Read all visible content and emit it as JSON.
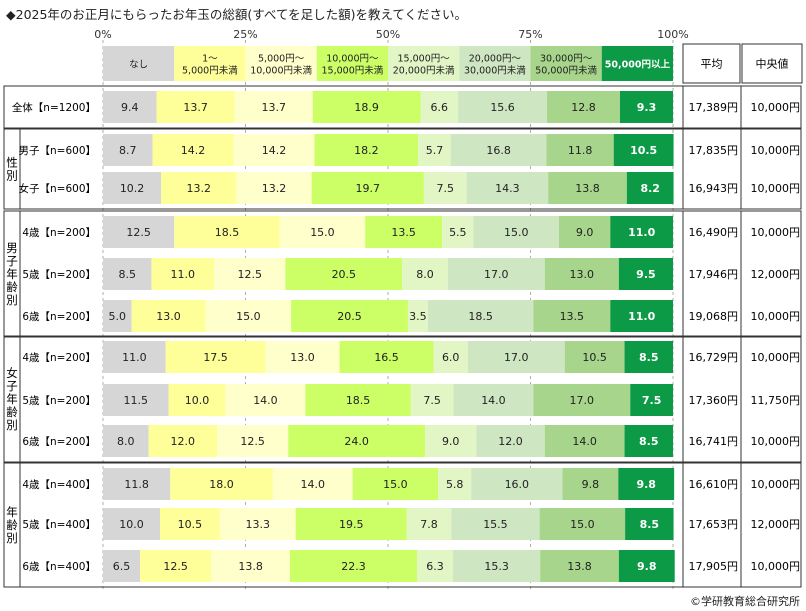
{
  "title": "◆2025年のお正月にもらったお年玉の総額(すべてを足した額)を教えてください。",
  "copyright": "©学研教育総合研究所",
  "chart_data": {
    "type": "bar",
    "orientation": "horizontal",
    "stacked": true,
    "percent_scale": true,
    "xlim": [
      0,
      100
    ],
    "xticks": [
      "0%",
      "25%",
      "50%",
      "75%",
      "100%"
    ],
    "colors": [
      "#d6d6d6",
      "#ffff99",
      "#ffffcc",
      "#ccff66",
      "#e2f5c4",
      "#cfe6c2",
      "#a8d58c",
      "#0d9a46"
    ],
    "series": [
      {
        "name": "なし",
        "values": [
          9.4,
          8.7,
          10.2,
          12.5,
          8.5,
          5.0,
          11.0,
          11.5,
          8.0,
          11.8,
          10.0,
          6.5
        ]
      },
      {
        "name": "1～\n5,000円未満",
        "values": [
          13.7,
          14.2,
          13.2,
          18.5,
          11.0,
          13.0,
          17.5,
          10.0,
          12.0,
          18.0,
          10.5,
          12.5
        ]
      },
      {
        "name": "5,000円～\n10,000円未満",
        "values": [
          13.7,
          14.2,
          13.2,
          15.0,
          12.5,
          15.0,
          13.0,
          14.0,
          12.5,
          14.0,
          13.3,
          13.8
        ]
      },
      {
        "name": "10,000円～\n15,000円未満",
        "values": [
          18.9,
          18.2,
          19.7,
          13.5,
          20.5,
          20.5,
          16.5,
          18.5,
          24.0,
          15.0,
          19.5,
          22.3
        ]
      },
      {
        "name": "15,000円～\n20,000円未満",
        "values": [
          6.6,
          5.7,
          7.5,
          5.5,
          8.0,
          3.5,
          6.0,
          7.5,
          9.0,
          5.8,
          7.8,
          6.3
        ]
      },
      {
        "name": "20,000円～\n30,000円未満",
        "values": [
          15.6,
          16.8,
          14.3,
          15.0,
          17.0,
          18.5,
          17.0,
          14.0,
          12.0,
          16.0,
          15.5,
          15.3
        ]
      },
      {
        "name": "30,000円～\n50,000円未満",
        "values": [
          12.8,
          11.8,
          13.8,
          9.0,
          13.0,
          13.5,
          10.5,
          17.0,
          14.0,
          9.8,
          15.0,
          13.8
        ]
      },
      {
        "name": "50,000円以上",
        "values": [
          9.3,
          10.5,
          8.2,
          11.0,
          9.5,
          11.0,
          8.5,
          7.5,
          8.5,
          9.8,
          8.5,
          9.8
        ]
      }
    ],
    "categories": [
      "全体【n=1200】",
      "男子【n=600】",
      "女子【n=600】",
      "4歳【n=200】",
      "5歳【n=200】",
      "6歳【n=200】",
      "4歳【n=200】",
      "5歳【n=200】",
      "6歳【n=200】",
      "4歳【n=400】",
      "5歳【n=400】",
      "6歳【n=400】"
    ],
    "groups": [
      {
        "label": "",
        "rows": [
          0
        ]
      },
      {
        "label": "性別",
        "rows": [
          1,
          2
        ]
      },
      {
        "label": "男子年齢別",
        "rows": [
          3,
          4,
          5
        ]
      },
      {
        "label": "女子年齢別",
        "rows": [
          6,
          7,
          8
        ]
      },
      {
        "label": "年齢別",
        "rows": [
          9,
          10,
          11
        ]
      }
    ],
    "table_headers": [
      "平均",
      "中央値"
    ],
    "mean": [
      "17,389円",
      "17,835円",
      "16,943円",
      "16,490円",
      "17,946円",
      "19,068円",
      "16,729円",
      "17,360円",
      "16,741円",
      "16,610円",
      "17,653円",
      "17,905円"
    ],
    "median": [
      "10,000円",
      "10,000円",
      "10,000円",
      "10,000円",
      "12,000円",
      "10,000円",
      "10,000円",
      "11,750円",
      "10,000円",
      "10,000円",
      "12,000円",
      "10,000円"
    ]
  }
}
